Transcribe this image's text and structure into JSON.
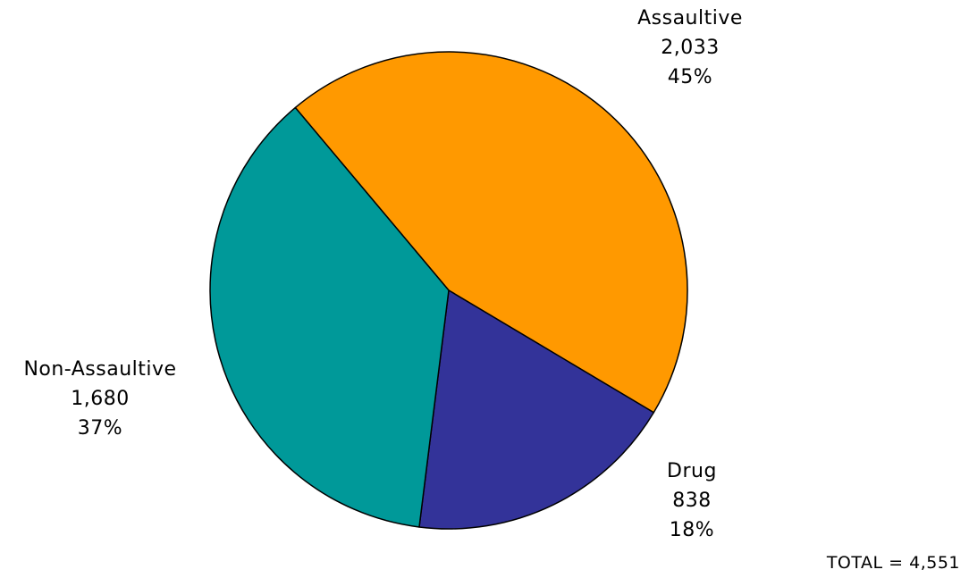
{
  "chart_data": {
    "type": "pie",
    "total_label": "TOTAL = 4,551",
    "slices": [
      {
        "name": "Assaultive",
        "value_label": "2,033",
        "percent_label": "45%",
        "value": 2033,
        "percent": 45,
        "color": "#FF9900"
      },
      {
        "name": "Drug",
        "value_label": "838",
        "percent_label": "18%",
        "value": 838,
        "percent": 18,
        "color": "#333399"
      },
      {
        "name": "Non-Assaultive",
        "value_label": "1,680",
        "percent_label": "37%",
        "value": 1680,
        "percent": 37,
        "color": "#009999"
      }
    ]
  }
}
